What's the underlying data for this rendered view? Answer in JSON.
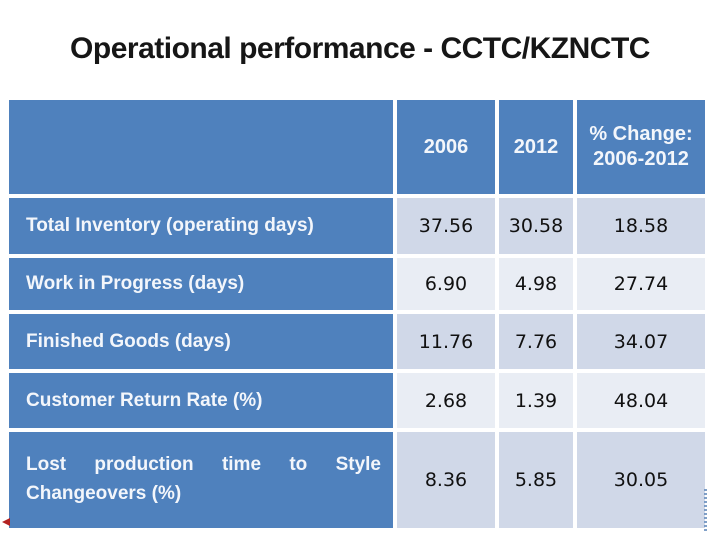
{
  "slide": {
    "title": "Operational performance - CCTC/KZNCTC"
  },
  "table": {
    "columns": [
      "",
      "2006",
      "2012",
      "% Change: 2006-2012"
    ],
    "rows": [
      {
        "label": "Total Inventory (operating days)",
        "v2006": "37.56",
        "v2012": "30.58",
        "change": "18.58"
      },
      {
        "label": "Work in Progress (days)",
        "v2006": "6.90",
        "v2012": "4.98",
        "change": "27.74"
      },
      {
        "label": "Finished Goods (days)",
        "v2006": "11.76",
        "v2012": "7.76",
        "change": "34.07"
      },
      {
        "label": "Customer Return Rate (%)",
        "v2006": "2.68",
        "v2012": "1.39",
        "change": "48.04"
      },
      {
        "label": "Lost production time to Style Changeovers (%)",
        "v2006": "8.36",
        "v2012": "5.85",
        "change": "30.05"
      }
    ]
  },
  "colors": {
    "header_blue": "#4F81BD",
    "band_dark": "#D0D8E8",
    "band_light": "#E9EDF4",
    "title_text": "#161616",
    "marker_red": "#B22222"
  }
}
